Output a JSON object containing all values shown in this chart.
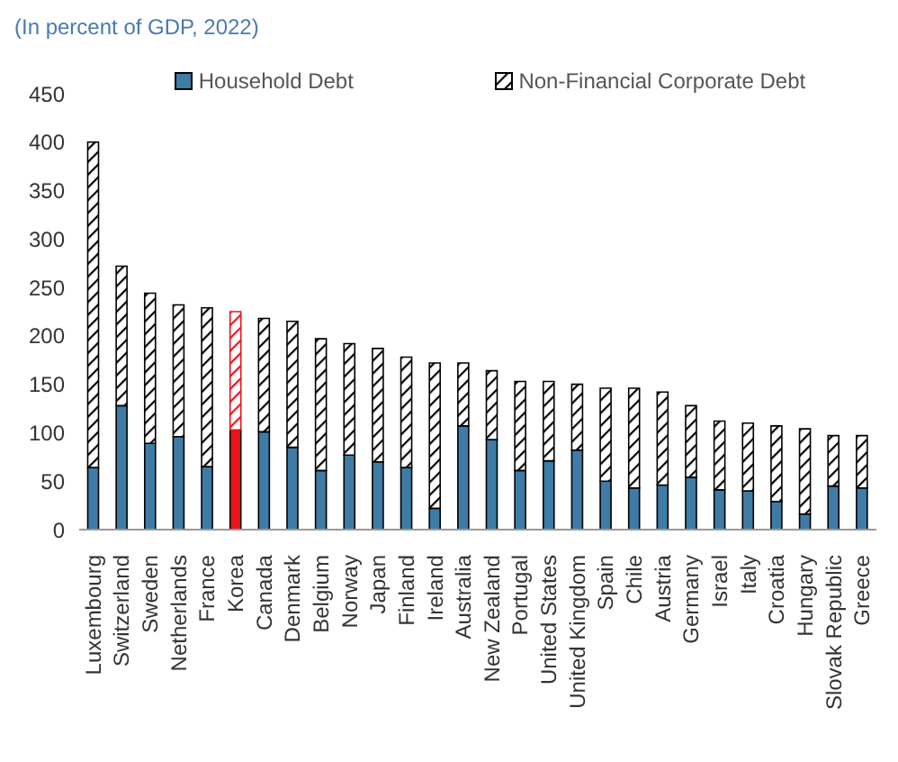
{
  "chart_data": {
    "type": "bar",
    "subtitle": "(In percent of GDP, 2022)",
    "stacked": true,
    "legend": "top",
    "grid": false,
    "categories": [
      "Luxembourg",
      "Switzerland",
      "Sweden",
      "Netherlands",
      "France",
      "Korea",
      "Canada",
      "Denmark",
      "Belgium",
      "Norway",
      "Japan",
      "Finland",
      "Ireland",
      "Australia",
      "New Zealand",
      "Portugal",
      "United States",
      "United Kingdom",
      "Spain",
      "Chile",
      "Austria",
      "Germany",
      "Israel",
      "Italy",
      "Croatia",
      "Hungary",
      "Slovak Republic",
      "Greece"
    ],
    "ylim": [
      0,
      450
    ],
    "yticks": [
      0,
      50,
      100,
      150,
      200,
      250,
      300,
      350,
      400,
      450
    ],
    "series": [
      {
        "name": "Household Debt",
        "color": "#3e7ca6",
        "colors": [
          "#3e7ca6",
          "#3e7ca6",
          "#3e7ca6",
          "#3e7ca6",
          "#3e7ca6",
          "#e8141c",
          "#3e7ca6",
          "#3e7ca6",
          "#3e7ca6",
          "#3e7ca6",
          "#3e7ca6",
          "#3e7ca6",
          "#3e7ca6",
          "#3e7ca6",
          "#3e7ca6",
          "#3e7ca6",
          "#3e7ca6",
          "#3e7ca6",
          "#3e7ca6",
          "#3e7ca6",
          "#3e7ca6",
          "#3e7ca6",
          "#3e7ca6",
          "#3e7ca6",
          "#3e7ca6",
          "#3e7ca6",
          "#3e7ca6",
          "#3e7ca6"
        ],
        "values": [
          64,
          128,
          89,
          96,
          65,
          103,
          101,
          85,
          61,
          77,
          70,
          64,
          22,
          107,
          93,
          61,
          71,
          82,
          50,
          43,
          46,
          54,
          41,
          40,
          29,
          16,
          45,
          43
        ]
      },
      {
        "name": "Non-Financial Corporate Debt",
        "color": "#000000",
        "colors": [
          "#000000",
          "#000000",
          "#000000",
          "#000000",
          "#000000",
          "#e8141c",
          "#000000",
          "#000000",
          "#000000",
          "#000000",
          "#000000",
          "#000000",
          "#000000",
          "#000000",
          "#000000",
          "#000000",
          "#000000",
          "#000000",
          "#000000",
          "#000000",
          "#000000",
          "#000000",
          "#000000",
          "#000000",
          "#000000",
          "#000000",
          "#000000",
          "#000000"
        ],
        "values": [
          336,
          144,
          155,
          136,
          164,
          122,
          117,
          130,
          136,
          115,
          117,
          114,
          150,
          65,
          71,
          92,
          82,
          68,
          96,
          103,
          96,
          74,
          71,
          70,
          78,
          88,
          52,
          54
        ]
      }
    ]
  }
}
